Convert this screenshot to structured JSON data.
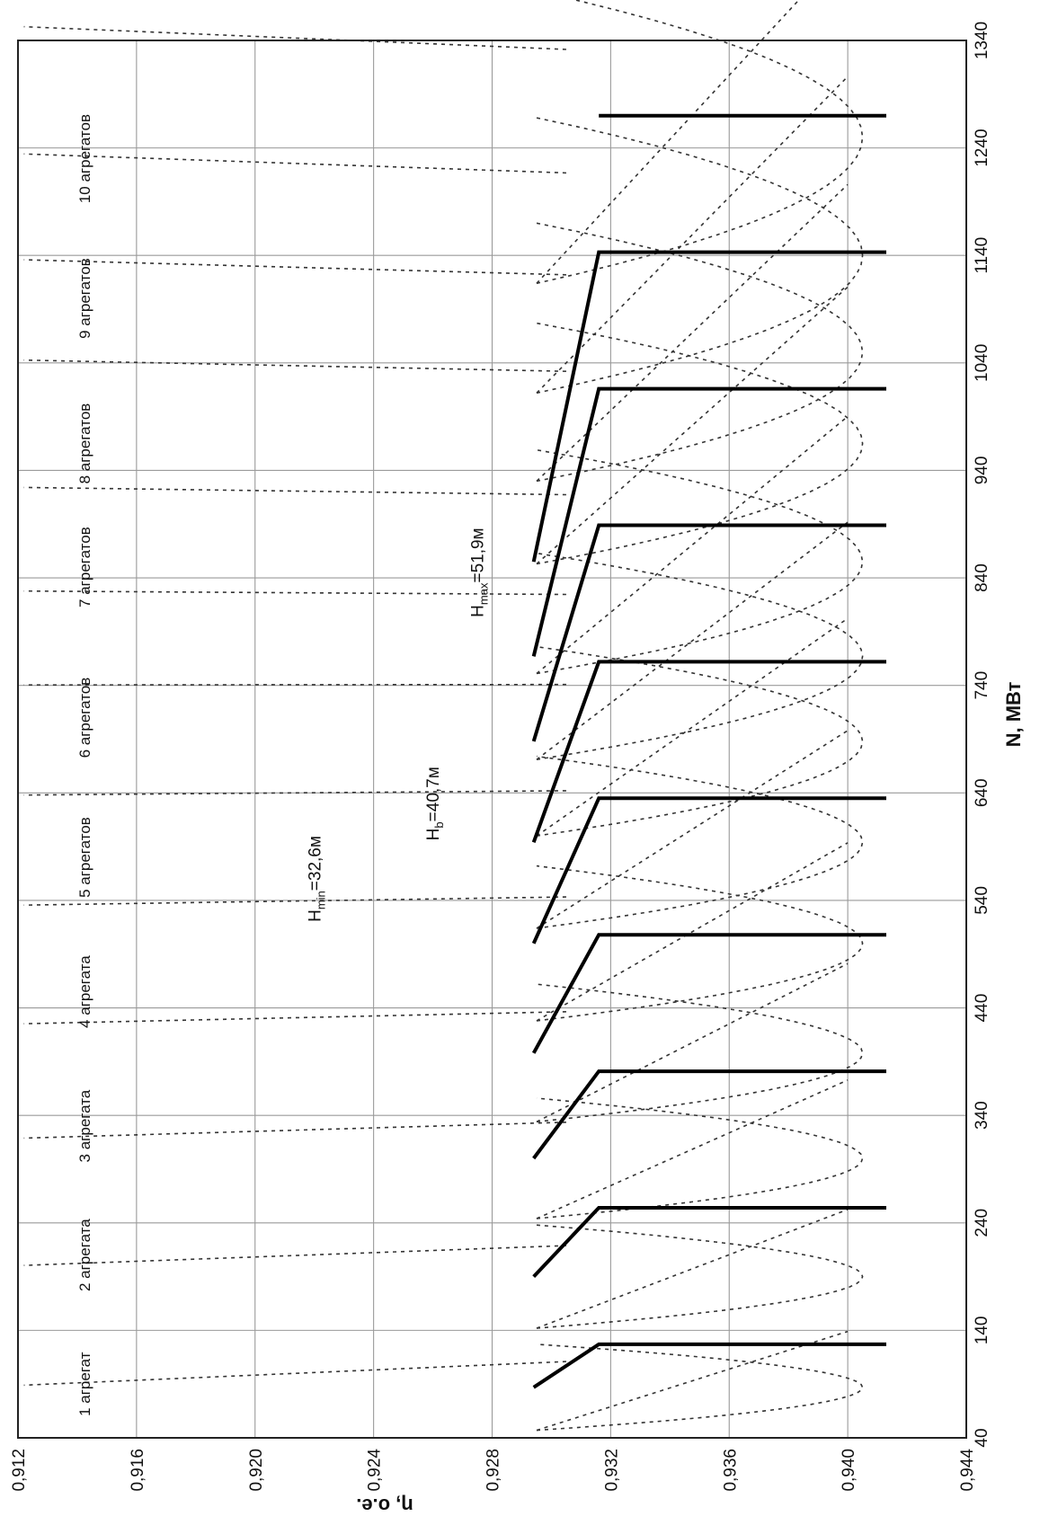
{
  "chart_data": {
    "type": "line",
    "orientation": "rotated 90° counter-clockwise (N axis runs bottom-to-top on the right edge, η axis runs left-to-right on the bottom edge)",
    "xlabel": "N, МВт",
    "ylabel": "η, о.е.",
    "xlim": [
      40,
      1340
    ],
    "ylim": [
      0.912,
      0.944
    ],
    "x_ticks": [
      "40",
      "140",
      "240",
      "340",
      "440",
      "540",
      "640",
      "740",
      "840",
      "940",
      "1040",
      "1140",
      "1240",
      "1340"
    ],
    "y_ticks": [
      "0,944",
      "0,940",
      "0,936",
      "0,932",
      "0,928",
      "0,924",
      "0,920",
      "0,916",
      "0,912"
    ],
    "grid": true,
    "series": [
      {
        "name": "1 агрегат",
        "label_x": 90,
        "points": [
          [
            87,
            0.9294
          ],
          [
            127,
            0.9316
          ],
          [
            127,
            0.9413
          ]
        ]
      },
      {
        "name": "2 агрегата",
        "label_x": 210,
        "points": [
          [
            190,
            0.9294
          ],
          [
            254,
            0.9316
          ],
          [
            254,
            0.9413
          ]
        ]
      },
      {
        "name": "3 агрегата",
        "label_x": 330,
        "points": [
          [
            300,
            0.9294
          ],
          [
            381,
            0.9316
          ],
          [
            381,
            0.9413
          ]
        ]
      },
      {
        "name": "4 агрегата",
        "label_x": 455,
        "points": [
          [
            398,
            0.9294
          ],
          [
            508,
            0.9316
          ],
          [
            508,
            0.9413
          ]
        ]
      },
      {
        "name": "5 агрегатов",
        "label_x": 580,
        "points": [
          [
            500,
            0.9294
          ],
          [
            635,
            0.9316
          ],
          [
            635,
            0.9413
          ]
        ]
      },
      {
        "name": "6 агрегатов",
        "label_x": 710,
        "points": [
          [
            594,
            0.9294
          ],
          [
            762,
            0.9316
          ],
          [
            762,
            0.9413
          ]
        ]
      },
      {
        "name": "7 агрегатов",
        "label_x": 850,
        "points": [
          [
            688,
            0.9294
          ],
          [
            889,
            0.9316
          ],
          [
            889,
            0.9413
          ]
        ]
      },
      {
        "name": "8 агрегатов",
        "label_x": 965,
        "points": [
          [
            767,
            0.9294
          ],
          [
            1016,
            0.9316
          ],
          [
            1016,
            0.9413
          ]
        ]
      },
      {
        "name": "9 агрегатов",
        "label_x": 1100,
        "points": [
          [
            855,
            0.9294
          ],
          [
            1143,
            0.9316
          ],
          [
            1143,
            0.9413
          ]
        ]
      },
      {
        "name": "10 агрегатов",
        "label_x": 1230,
        "points": []
      }
    ],
    "extra_solid": {
      "points": [
        [
          1270,
          0.9316
        ],
        [
          1270,
          0.9413
        ]
      ]
    },
    "head_curves": [
      {
        "name": "Hmax=51,9м",
        "text_main": "H",
        "text_sub": "max",
        "text_tail": "=51,9м",
        "x": 845,
        "y": 0.9277
      },
      {
        "name": "Hb=40,7м",
        "text_main": "H",
        "text_sub": "b",
        "text_tail": "=40,7м",
        "x": 630,
        "y": 0.9262
      },
      {
        "name": "Hmin=32,6м",
        "text_main": "H",
        "text_sub": "min",
        "text_tail": "=32,6м",
        "x": 560,
        "y": 0.9222
      }
    ],
    "dotted_performance_curves": {
      "centers_N": [
        87,
        190,
        300,
        398,
        500,
        594,
        688,
        767,
        855,
        965,
        1050,
        1140,
        1250
      ],
      "peak_eta": 0.9405
    }
  }
}
